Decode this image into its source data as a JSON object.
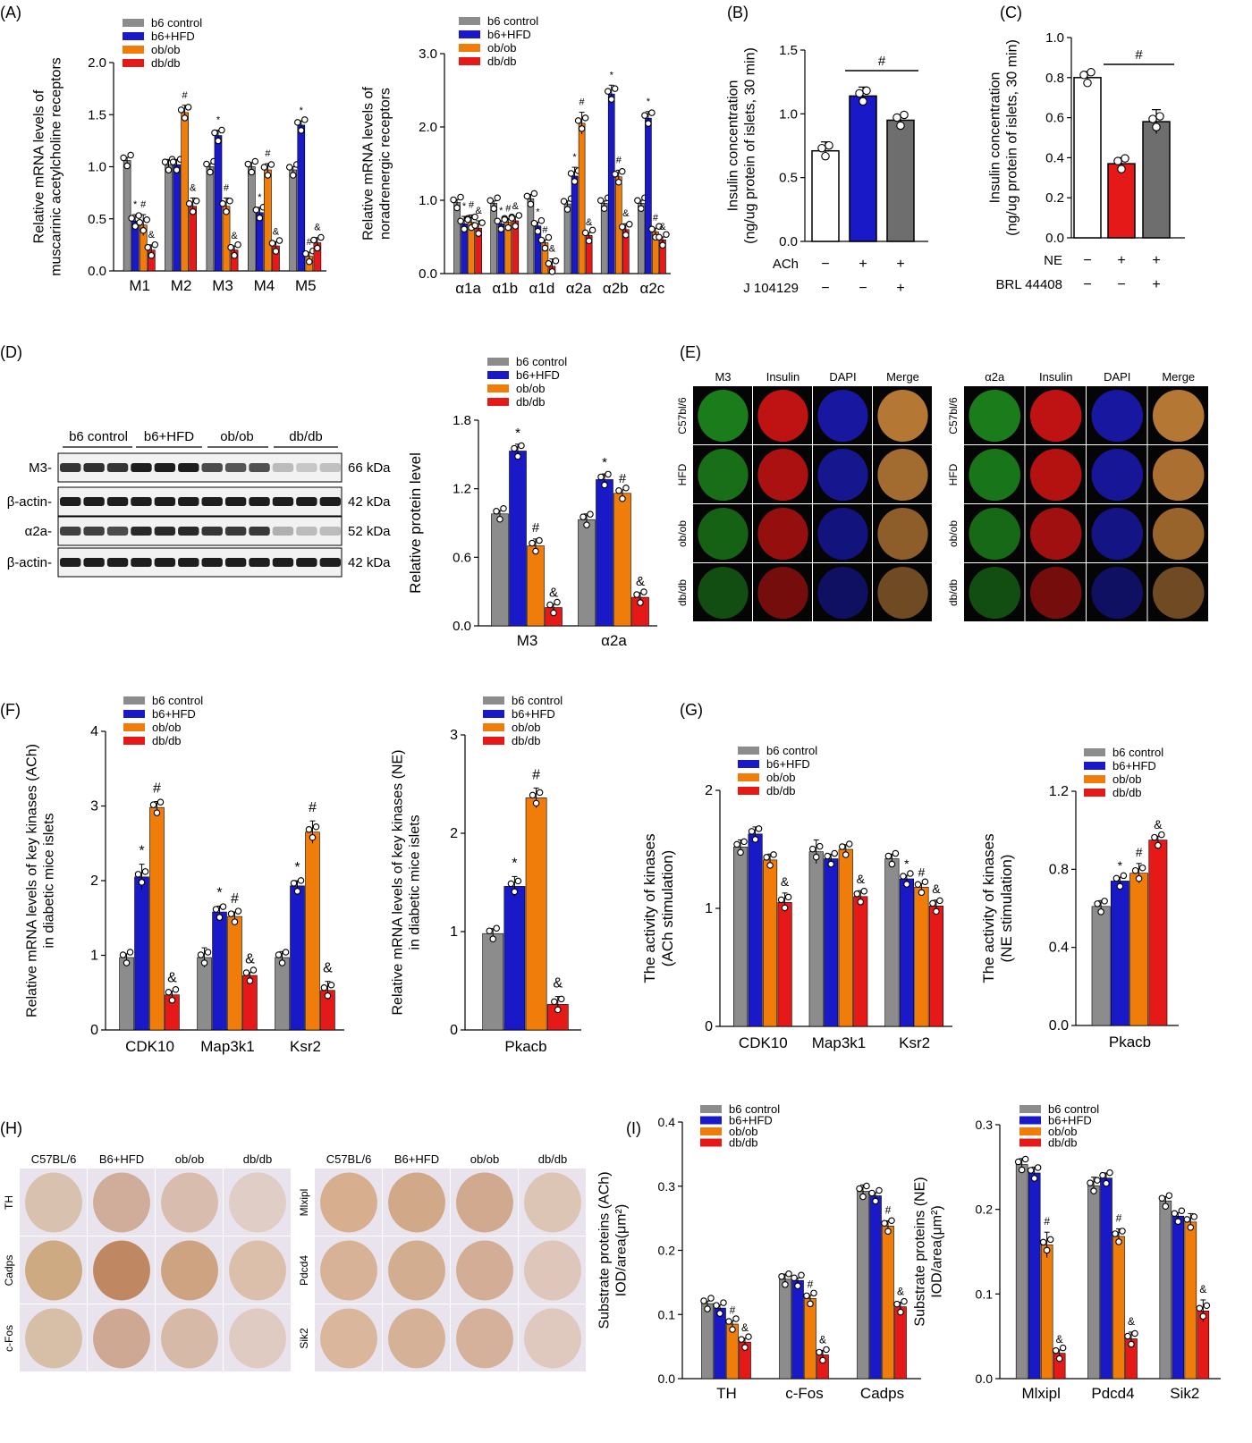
{
  "colors": {
    "b6control": "#8c8c8c",
    "b6hfd": "#1919c8",
    "obob": "#f07d0a",
    "dbdb": "#e61919",
    "white": "#ffffff",
    "red": "#e61919",
    "grey": "#6e6e6e"
  },
  "legend4": [
    "b6 control",
    "b6+HFD",
    "ob/ob",
    "db/db"
  ],
  "panel_labels": {
    "A": "(A)",
    "B": "(B)",
    "C": "(C)",
    "D": "(D)",
    "E": "(E)",
    "F": "(F)",
    "G": "(G)",
    "H": "(H)",
    "I": "(I)"
  },
  "blot": {
    "groups": [
      "b6 control",
      "b6+HFD",
      "ob/ob",
      "db/db"
    ],
    "rows": [
      {
        "name": "M3-",
        "size": "66 kDa",
        "intensity": [
          0.9,
          0.92,
          0.9,
          1,
          1,
          1,
          0.8,
          0.75,
          0.78,
          0.3,
          0.25,
          0.28
        ]
      },
      {
        "name": "β-actin-",
        "size": "42 kDa",
        "intensity": [
          1,
          1,
          1,
          1,
          1,
          1,
          1,
          1,
          1,
          1,
          1,
          1
        ]
      },
      {
        "name": "α2a-",
        "size": "52 kDa",
        "intensity": [
          0.85,
          0.85,
          0.8,
          0.95,
          0.95,
          0.95,
          0.9,
          0.88,
          0.88,
          0.35,
          0.3,
          0.3
        ]
      },
      {
        "name": "β-actin-",
        "size": "42 kDa",
        "intensity": [
          1,
          1,
          1,
          1,
          1,
          1,
          1,
          1,
          1,
          1,
          1,
          1
        ]
      }
    ]
  },
  "panelE": {
    "left": {
      "cols": [
        "M3",
        "Insulin",
        "DAPI",
        "Merge"
      ],
      "rows": [
        "C57bl/6",
        "HFD",
        "ob/ob",
        "db/db"
      ]
    },
    "right": {
      "cols": [
        "α2a",
        "Insulin",
        "DAPI",
        "Merge"
      ],
      "rows": [
        "C57bl/6",
        "HFD",
        "ob/ob",
        "db/db"
      ]
    }
  },
  "panelH": {
    "left": {
      "cols": [
        "C57BL/6",
        "B6+HFD",
        "ob/ob",
        "db/db"
      ],
      "rows": [
        "TH",
        "Cadps",
        "c-Fos"
      ]
    },
    "right": {
      "cols": [
        "C57BL/6",
        "B6+HFD",
        "ob/ob",
        "db/db"
      ],
      "rows": [
        "Mlxipl",
        "Pdcd4",
        "Sik2"
      ]
    }
  },
  "chart_data": [
    {
      "id": "A1",
      "type": "bar",
      "ylabel": "Relative mRNA levels of\nmuscarinic acetylcholine receptors",
      "ylim": [
        0,
        2.0
      ],
      "ticks": [
        "0.0",
        "0.5",
        "1.0",
        "1.5",
        "2.0"
      ],
      "categories": [
        "M1",
        "M2",
        "M3",
        "M4",
        "M5"
      ],
      "series": [
        {
          "name": "b6 control",
          "values": [
            1.06,
            1.02,
            1.0,
            1.0,
            0.97
          ],
          "err": [
            0.03,
            0.05,
            0.03,
            0.04,
            0.03
          ],
          "marks": [
            "",
            "",
            "",
            "",
            ""
          ]
        },
        {
          "name": "b6+HFD",
          "values": [
            0.48,
            1.02,
            1.3,
            0.56,
            1.4
          ],
          "err": [
            0.06,
            0.05,
            0.05,
            0.05,
            0.04
          ],
          "marks": [
            "*",
            "",
            "*",
            "*",
            "*"
          ]
        },
        {
          "name": "ob/ob",
          "values": [
            0.44,
            1.52,
            0.62,
            0.97,
            0.14
          ],
          "err": [
            0.1,
            0.07,
            0.08,
            0.06,
            0.04
          ],
          "marks": [
            "#",
            "#",
            "#",
            "#",
            "#"
          ]
        },
        {
          "name": "db/db",
          "values": [
            0.2,
            0.62,
            0.2,
            0.24,
            0.27
          ],
          "err": [
            0.05,
            0.08,
            0.04,
            0.04,
            0.05
          ],
          "marks": [
            "&",
            "&",
            "&",
            "&",
            "&"
          ]
        }
      ]
    },
    {
      "id": "A2",
      "type": "bar",
      "ylabel": "Relative mRNA levels of\nnoradrenergic receptors",
      "ylim": [
        0,
        3.0
      ],
      "ticks": [
        "0.0",
        "1.0",
        "2.0",
        "3.0"
      ],
      "categories": [
        "α1a",
        "α1b",
        "α1d",
        "α2a",
        "α2b",
        "α2c"
      ],
      "series": [
        {
          "name": "b6 control",
          "values": [
            0.97,
            0.96,
            1.02,
            0.95,
            0.96,
            0.96
          ],
          "err": [
            0.04,
            0.03,
            0.06,
            0.04,
            0.03,
            0.04
          ],
          "marks": [
            "",
            "",
            "",
            "",
            "",
            ""
          ]
        },
        {
          "name": "b6+HFD",
          "values": [
            0.68,
            0.68,
            0.65,
            1.33,
            2.45,
            2.12
          ],
          "err": [
            0.1,
            0.04,
            0.05,
            0.12,
            0.12,
            0.09
          ],
          "marks": [
            "*",
            "*",
            "*",
            "*",
            "*",
            "*"
          ]
        },
        {
          "name": "ob/ob",
          "values": [
            0.7,
            0.7,
            0.42,
            2.05,
            1.32,
            0.57
          ],
          "err": [
            0.1,
            0.05,
            0.04,
            0.15,
            0.09,
            0.05
          ],
          "marks": [
            "#",
            "#",
            "#",
            "#",
            "#",
            "#"
          ]
        },
        {
          "name": "db/db",
          "values": [
            0.62,
            0.72,
            0.1,
            0.52,
            0.6,
            0.46
          ],
          "err": [
            0.1,
            0.06,
            0.1,
            0.04,
            0.08,
            0.04
          ],
          "marks": [
            "&",
            "&",
            "&",
            "&",
            "&",
            "&"
          ]
        }
      ]
    },
    {
      "id": "B",
      "type": "bar",
      "ylabel": "Insulin concentration\n(ng/ug protein of islets, 30 min)",
      "ylim": [
        0,
        1.5
      ],
      "ticks": [
        "0.0",
        "0.5",
        "1.0",
        "1.5"
      ],
      "values": [
        0.71,
        1.14,
        0.95
      ],
      "err": [
        0.07,
        0.07,
        0.04
      ],
      "colors": [
        "#ffffff",
        "#1919c8",
        "#6e6e6e"
      ],
      "treatments": [
        {
          "label": "ACh",
          "values": [
            "−",
            "+",
            "+"
          ]
        },
        {
          "label": "J 104129",
          "values": [
            "−",
            "−",
            "+"
          ]
        }
      ],
      "sig": "#"
    },
    {
      "id": "C",
      "type": "bar",
      "ylabel": "Insulin concentration\n(ng/ug protein of islets, 30 min)",
      "ylim": [
        0,
        1.0
      ],
      "ticks": [
        "0.0",
        "0.2",
        "0.4",
        "0.6",
        "0.8",
        "1.0"
      ],
      "values": [
        0.8,
        0.37,
        0.58
      ],
      "err": [
        0.03,
        0.03,
        0.06
      ],
      "colors": [
        "#ffffff",
        "#e61919",
        "#6e6e6e"
      ],
      "treatments": [
        {
          "label": "NE",
          "values": [
            "−",
            "+",
            "+"
          ]
        },
        {
          "label": "BRL 44408",
          "values": [
            "−",
            "−",
            "+"
          ]
        }
      ],
      "sig": "#"
    },
    {
      "id": "D",
      "type": "bar",
      "ylabel": "Relative protein level",
      "ylim": [
        0,
        1.8
      ],
      "ticks": [
        "0.0",
        "0.6",
        "1.2",
        "1.8"
      ],
      "categories": [
        "M3",
        "α2a"
      ],
      "series": [
        {
          "name": "b6 control",
          "values": [
            0.98,
            0.93
          ],
          "err": [
            0.03,
            0.05
          ],
          "marks": [
            "",
            ""
          ]
        },
        {
          "name": "b6+HFD",
          "values": [
            1.53,
            1.28
          ],
          "err": [
            0.06,
            0.05
          ],
          "marks": [
            "*",
            "*"
          ]
        },
        {
          "name": "ob/ob",
          "values": [
            0.7,
            1.16
          ],
          "err": [
            0.06,
            0.03
          ],
          "marks": [
            "#",
            "#"
          ]
        },
        {
          "name": "db/db",
          "values": [
            0.16,
            0.25
          ],
          "err": [
            0.03,
            0.04
          ],
          "marks": [
            "&",
            "&"
          ]
        }
      ]
    },
    {
      "id": "F1",
      "type": "bar",
      "ylabel": "Relative mRNA levels of key kinases (ACh)\nin diabetic mice islets",
      "ylim": [
        0,
        4
      ],
      "ticks": [
        "0",
        "1",
        "2",
        "3",
        "4"
      ],
      "categories": [
        "CDK10",
        "Map3k1",
        "Ksr2"
      ],
      "series": [
        {
          "name": "b6 control",
          "values": [
            0.97,
            0.97,
            0.97
          ],
          "err": [
            0.05,
            0.13,
            0.08
          ],
          "marks": [
            "",
            "",
            ""
          ]
        },
        {
          "name": "b6+HFD",
          "values": [
            2.05,
            1.58,
            1.93
          ],
          "err": [
            0.17,
            0.08,
            0.07
          ],
          "marks": [
            "*",
            "*",
            "*"
          ]
        },
        {
          "name": "ob/ob",
          "values": [
            2.98,
            1.52,
            2.65
          ],
          "err": [
            0.08,
            0.06,
            0.15
          ],
          "marks": [
            "#",
            "#",
            "#"
          ]
        },
        {
          "name": "db/db",
          "values": [
            0.47,
            0.73,
            0.53
          ],
          "err": [
            0.05,
            0.04,
            0.12
          ],
          "marks": [
            "&",
            "&",
            "&"
          ]
        }
      ]
    },
    {
      "id": "F2",
      "type": "bar",
      "ylabel": "Relative mRNA levels of key kinases (NE)\nin diabetic mice islets",
      "ylim": [
        0,
        3
      ],
      "ticks": [
        "0",
        "1",
        "2",
        "3"
      ],
      "categories": [
        "Pkacb"
      ],
      "series": [
        {
          "name": "b6 control",
          "values": [
            0.98
          ],
          "err": [
            0.05
          ],
          "marks": [
            ""
          ]
        },
        {
          "name": "b6+HFD",
          "values": [
            1.46
          ],
          "err": [
            0.1
          ],
          "marks": [
            "*"
          ]
        },
        {
          "name": "ob/ob",
          "values": [
            2.36
          ],
          "err": [
            0.1
          ],
          "marks": [
            "#"
          ]
        },
        {
          "name": "db/db",
          "values": [
            0.26
          ],
          "err": [
            0.08
          ],
          "marks": [
            "&"
          ]
        }
      ]
    },
    {
      "id": "G1",
      "type": "bar",
      "ylabel": "The activity of kinases\n(ACh stimulation)",
      "ylim": [
        0,
        2
      ],
      "ticks": [
        "0",
        "1",
        "2"
      ],
      "categories": [
        "CDK10",
        "Map3k1",
        "Ksr2"
      ],
      "series": [
        {
          "name": "b6 control",
          "values": [
            1.52,
            1.48,
            1.42
          ],
          "err": [
            0.06,
            0.1,
            0.04
          ],
          "marks": [
            "",
            "",
            ""
          ]
        },
        {
          "name": "b6+HFD",
          "values": [
            1.63,
            1.42,
            1.25
          ],
          "err": [
            0.06,
            0.04,
            0.03
          ],
          "marks": [
            "",
            "",
            "*"
          ]
        },
        {
          "name": "ob/ob",
          "values": [
            1.41,
            1.5,
            1.18
          ],
          "err": [
            0.05,
            0.04,
            0.03
          ],
          "marks": [
            "",
            "",
            "#"
          ]
        },
        {
          "name": "db/db",
          "values": [
            1.05,
            1.1,
            1.02
          ],
          "err": [
            0.08,
            0.05,
            0.05
          ],
          "marks": [
            "&",
            "&",
            "&"
          ]
        }
      ]
    },
    {
      "id": "G2",
      "type": "bar",
      "ylabel": "The activity of kinases\n(NE stimulation)",
      "ylim": [
        0,
        1.2
      ],
      "ticks": [
        "0.0",
        "0.4",
        "0.8",
        "1.2"
      ],
      "categories": [
        "Pkacb"
      ],
      "series": [
        {
          "name": "b6 control",
          "values": [
            0.61
          ],
          "err": [
            0.03
          ],
          "marks": [
            ""
          ]
        },
        {
          "name": "b6+HFD",
          "values": [
            0.74
          ],
          "err": [
            0.02
          ],
          "marks": [
            "*"
          ]
        },
        {
          "name": "ob/ob",
          "values": [
            0.78
          ],
          "err": [
            0.05
          ],
          "marks": [
            "#"
          ]
        },
        {
          "name": "db/db",
          "values": [
            0.95
          ],
          "err": [
            0.02
          ],
          "marks": [
            "&"
          ]
        }
      ]
    },
    {
      "id": "I1",
      "type": "bar",
      "ylabel": "Substrate proteins (ACh)\nIOD/area(μm²)",
      "ylim": [
        0,
        0.4
      ],
      "ticks": [
        "0.0",
        "0.1",
        "0.2",
        "0.3",
        "0.4"
      ],
      "categories": [
        "TH",
        "c-Fos",
        "Cadps"
      ],
      "series": [
        {
          "name": "b6 control",
          "values": [
            0.117,
            0.155,
            0.292
          ],
          "err": [
            0.004,
            0.008,
            0.01
          ],
          "marks": [
            "",
            "",
            ""
          ]
        },
        {
          "name": "b6+HFD",
          "values": [
            0.11,
            0.153,
            0.285
          ],
          "err": [
            0.005,
            0.004,
            0.005
          ],
          "marks": [
            "",
            "",
            ""
          ]
        },
        {
          "name": "ob/ob",
          "values": [
            0.085,
            0.125,
            0.238
          ],
          "err": [
            0.005,
            0.005,
            0.008
          ],
          "marks": [
            "#",
            "#",
            "#"
          ]
        },
        {
          "name": "db/db",
          "values": [
            0.057,
            0.037,
            0.112
          ],
          "err": [
            0.006,
            0.007,
            0.007
          ],
          "marks": [
            "&",
            "&",
            "&"
          ]
        }
      ]
    },
    {
      "id": "I2",
      "type": "bar",
      "ylabel": "Substrate proteins (NE)\nIOD/area(μm²)",
      "ylim": [
        0,
        0.3
      ],
      "ticks": [
        "0.0",
        "0.1",
        "0.2",
        "0.3"
      ],
      "categories": [
        "Mlxipl",
        "Pdcd4",
        "Sik2"
      ],
      "series": [
        {
          "name": "b6 control",
          "values": [
            0.253,
            0.228,
            0.21
          ],
          "err": [
            0.007,
            0.01,
            0.005
          ],
          "marks": [
            "",
            "",
            ""
          ]
        },
        {
          "name": "b6+HFD",
          "values": [
            0.243,
            0.237,
            0.192
          ],
          "err": [
            0.007,
            0.006,
            0.004
          ],
          "marks": [
            "",
            "",
            ""
          ]
        },
        {
          "name": "ob/ob",
          "values": [
            0.158,
            0.168,
            0.185
          ],
          "err": [
            0.015,
            0.009,
            0.01
          ],
          "marks": [
            "#",
            "#",
            ""
          ]
        },
        {
          "name": "db/db",
          "values": [
            0.03,
            0.047,
            0.08
          ],
          "err": [
            0.004,
            0.008,
            0.013
          ],
          "marks": [
            "&",
            "&",
            "&"
          ]
        }
      ]
    }
  ]
}
